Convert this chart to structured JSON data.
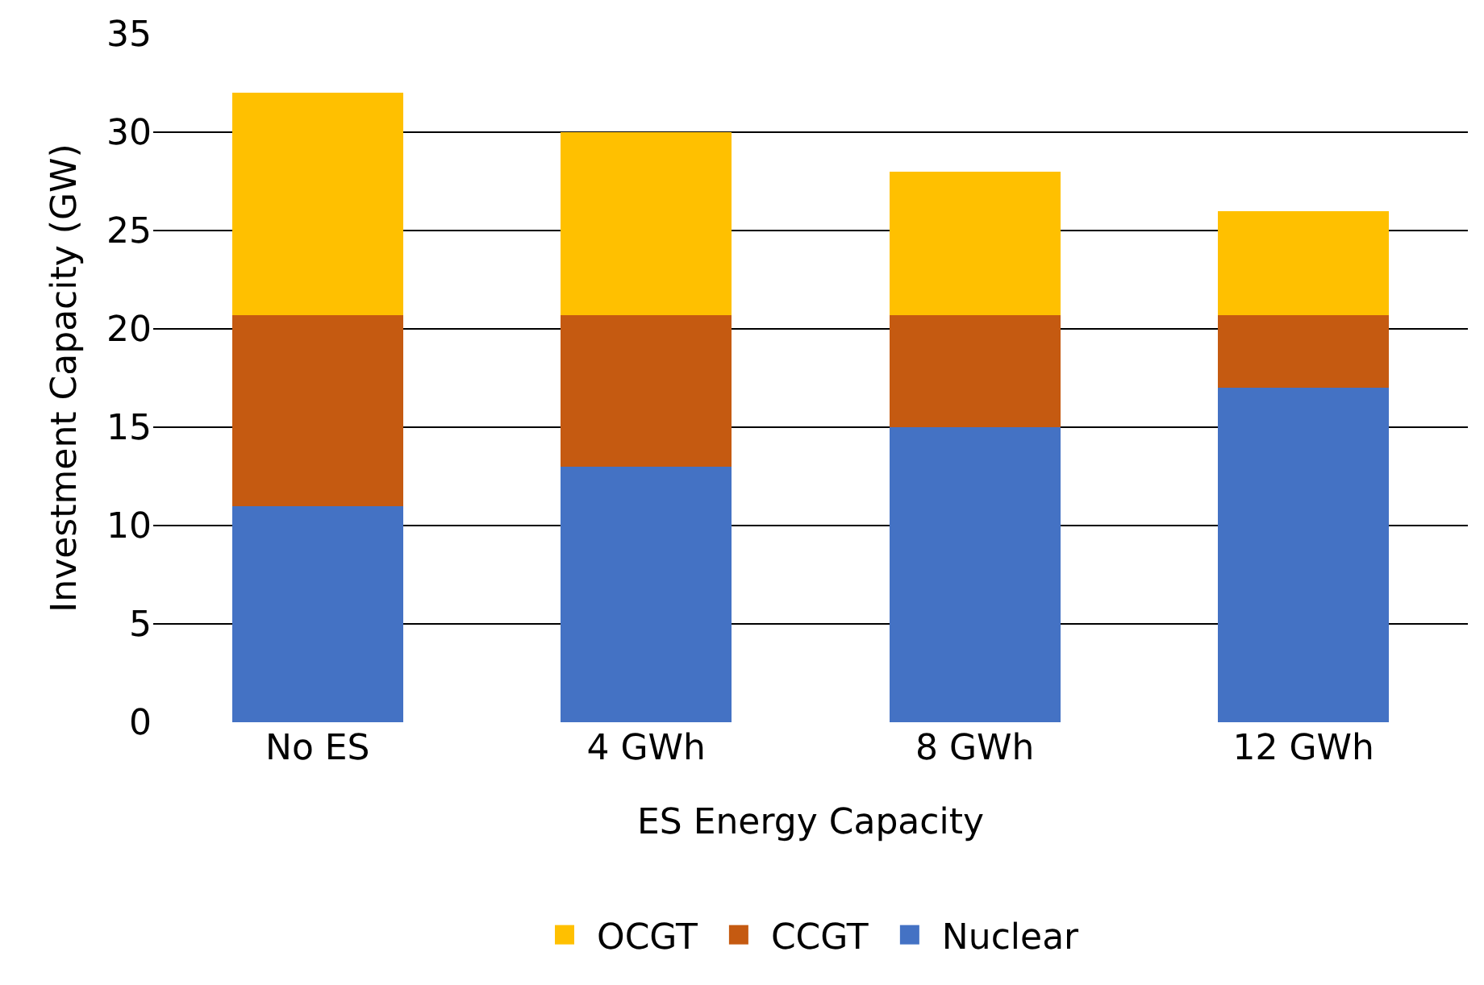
{
  "chart_data": {
    "type": "bar",
    "stacked": true,
    "xlabel": "ES Energy Capacity",
    "ylabel": "Investment Capacity (GW)",
    "categories": [
      "No ES",
      "4 GWh",
      "8 GWh",
      "12 GWh"
    ],
    "series": [
      {
        "name": "Nuclear",
        "color": "#4472c4",
        "values": [
          11,
          13,
          15,
          17
        ]
      },
      {
        "name": "CCGT",
        "color": "#c55a11",
        "values": [
          9.7,
          7.7,
          5.7,
          3.7
        ]
      },
      {
        "name": "OCGT",
        "color": "#ffc000",
        "values": [
          11.3,
          9.3,
          7.3,
          5.3
        ]
      }
    ],
    "ylim": [
      0,
      35
    ],
    "yticks": [
      0,
      5,
      10,
      15,
      20,
      25,
      30,
      35
    ],
    "grid": "y",
    "legend": "bottom"
  }
}
